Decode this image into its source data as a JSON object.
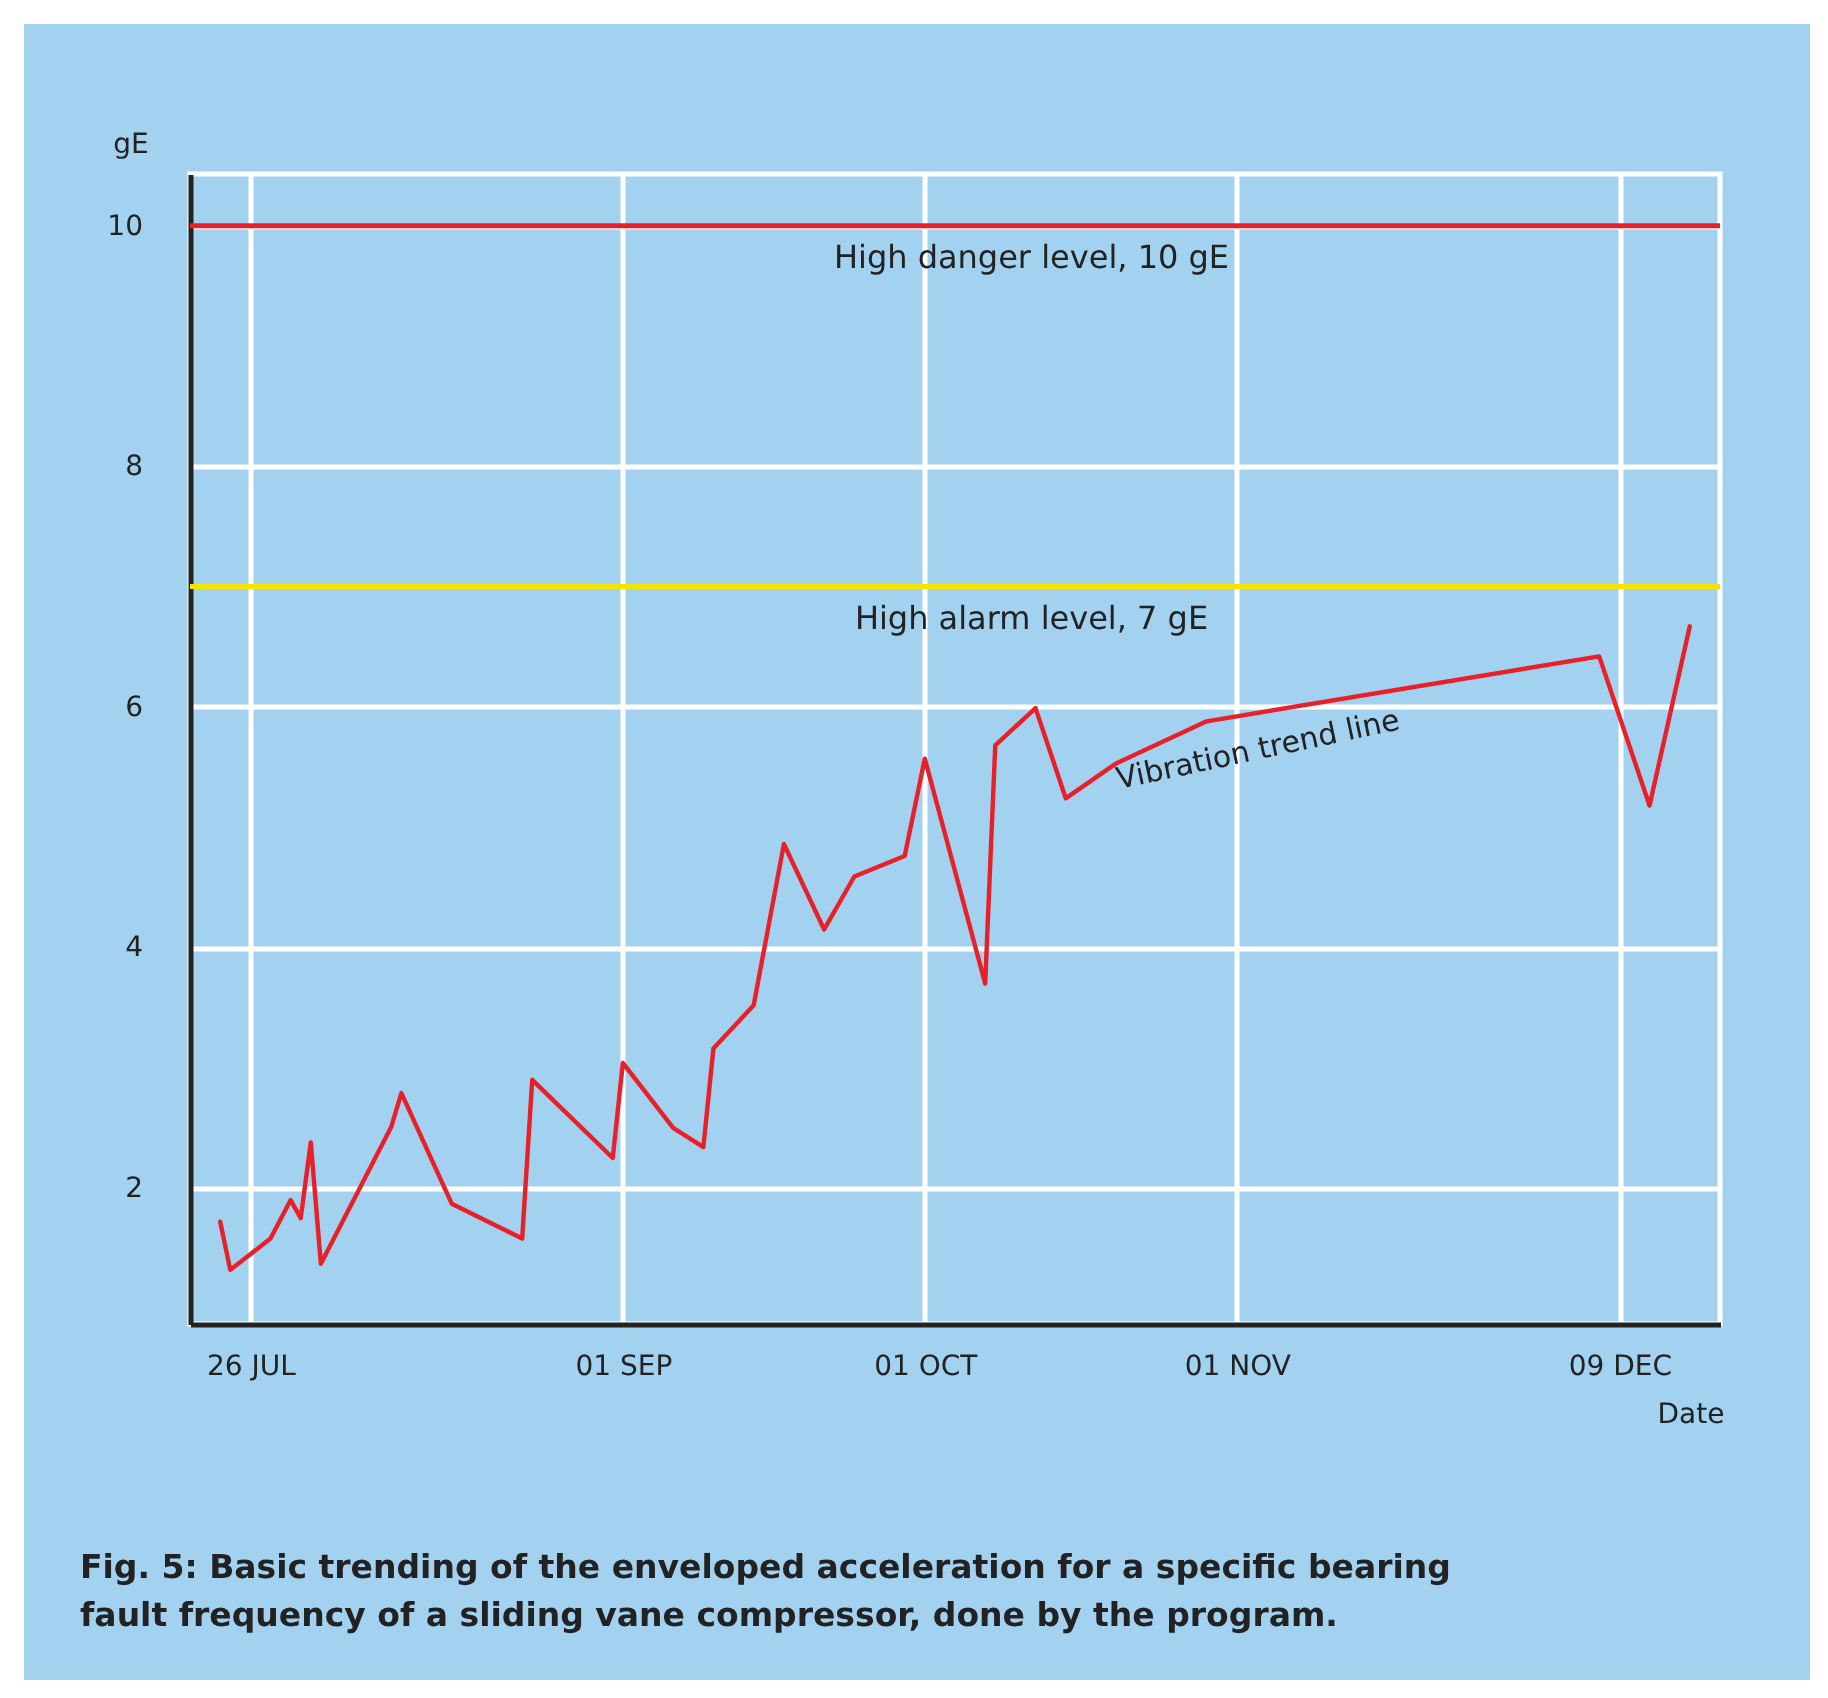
{
  "chart_data": {
    "type": "line",
    "title": "Fig. 5: Basic trending of the enveloped acceleration for a specific bearing fault frequency of a sliding vane compressor, done by the program.",
    "xlabel": "Date",
    "ylabel": "gE",
    "x": [
      "--07-23",
      "--07-24",
      "--07-28",
      "--07-30",
      "--07-31",
      "--08-01",
      "--08-02",
      "--08-09",
      "--08-10",
      "--08-15",
      "--08-22",
      "--08-23",
      "--08-31",
      "--09-01",
      "--09-06",
      "--09-09",
      "--09-10",
      "--09-14",
      "--09-17",
      "--09-21",
      "--09-24",
      "--09-29",
      "--10-01",
      "--10-07",
      "--10-08",
      "--10-12",
      "--10-15",
      "--10-20",
      "--10-29",
      "--12-07",
      "--12-12",
      "--12-16"
    ],
    "series": [
      {
        "name": "Vibration trend line",
        "color": "#e8202a",
        "values": [
          1.72,
          1.32,
          1.58,
          1.9,
          1.75,
          2.38,
          1.37,
          2.51,
          2.79,
          1.87,
          1.58,
          2.9,
          2.25,
          3.04,
          2.5,
          2.34,
          3.16,
          3.52,
          4.86,
          4.15,
          4.59,
          4.76,
          5.57,
          3.7,
          5.68,
          5.99,
          5.24,
          5.53,
          5.88,
          6.42,
          5.18,
          6.67
        ]
      }
    ],
    "xlim": [
      "--07-20",
      "--12-19"
    ],
    "xticks": [
      {
        "value": "--07-26",
        "label": "26 JUL"
      },
      {
        "value": "--09-01",
        "label": "01 SEP"
      },
      {
        "value": "--10-01",
        "label": "01 OCT"
      },
      {
        "value": "--11-01",
        "label": "01 NOV"
      },
      {
        "value": "--12-09",
        "label": "09 DEC"
      }
    ],
    "ylim": [
      0.87,
      10.43
    ],
    "yticks": [
      2,
      4,
      6,
      8,
      10
    ],
    "ref_lines": [
      {
        "axis": "y",
        "value": 10,
        "label": "High danger level, 10 gE",
        "color": "#e8202a"
      },
      {
        "axis": "y",
        "value": 7,
        "label": "High alarm level, 7 gE",
        "color": "#f5e400"
      }
    ],
    "grid": true,
    "legend": false,
    "marker": "none",
    "line_style": "solid"
  }
}
